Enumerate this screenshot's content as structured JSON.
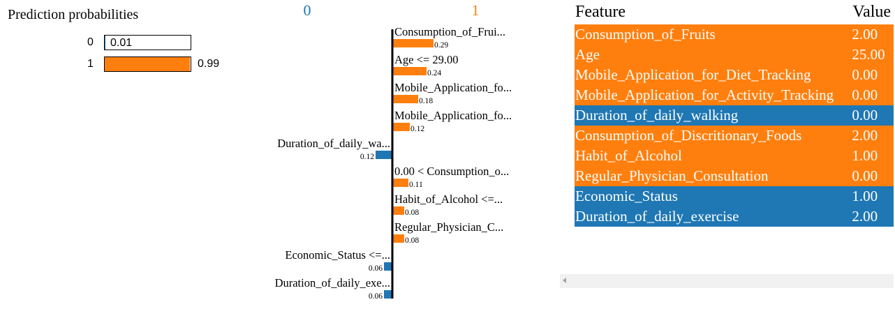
{
  "proba": {
    "title": "Prediction probabilities",
    "rows": [
      {
        "cls": "0",
        "value": 0.01,
        "label": "0.01",
        "color": "#1f77b4"
      },
      {
        "cls": "1",
        "value": 0.99,
        "label": "0.99",
        "color": "#ff7f0e"
      }
    ]
  },
  "chart_data": {
    "type": "bar",
    "orientation": "horizontal",
    "class_labels": [
      {
        "text": "0",
        "color": "#1f77b4"
      },
      {
        "text": "1",
        "color": "#ff7f0e"
      }
    ],
    "bars": [
      {
        "label": "Consumption_of_Frui...",
        "value": 0.29,
        "value_label": "0.29",
        "side": "1"
      },
      {
        "label": "Age <= 29.00",
        "value": 0.24,
        "value_label": "0.24",
        "side": "1"
      },
      {
        "label": "Mobile_Application_fo...",
        "value": 0.18,
        "value_label": "0.18",
        "side": "1"
      },
      {
        "label": "Mobile_Application_fo...",
        "value": 0.12,
        "value_label": "0.12",
        "side": "1"
      },
      {
        "label": "Duration_of_daily_wa...",
        "value": 0.12,
        "value_label": "0.12",
        "side": "0"
      },
      {
        "label": "0.00 < Consumption_o...",
        "value": 0.11,
        "value_label": "0.11",
        "side": "1"
      },
      {
        "label": "Habit_of_Alcohol <=...",
        "value": 0.08,
        "value_label": "0.08",
        "side": "1"
      },
      {
        "label": "Regular_Physician_C...",
        "value": 0.08,
        "value_label": "0.08",
        "side": "1"
      },
      {
        "label": "Economic_Status <=...",
        "value": 0.06,
        "value_label": "0.06",
        "side": "0"
      },
      {
        "label": "Duration_of_daily_exe...",
        "value": 0.06,
        "value_label": "0.06",
        "side": "0"
      }
    ]
  },
  "table": {
    "header_feature": "Feature",
    "header_value": "Value",
    "rows": [
      {
        "feature": "Consumption_of_Fruits",
        "value": "2.00",
        "side": "1"
      },
      {
        "feature": "Age",
        "value": "25.00",
        "side": "1"
      },
      {
        "feature": "Mobile_Application_for_Diet_Tracking",
        "value": "0.00",
        "side": "1"
      },
      {
        "feature": "Mobile_Application_for_Activity_Tracking",
        "value": "0.00",
        "side": "1"
      },
      {
        "feature": "Duration_of_daily_walking",
        "value": "0.00",
        "side": "0"
      },
      {
        "feature": "Consumption_of_Discritionary_Foods",
        "value": "2.00",
        "side": "1"
      },
      {
        "feature": "Habit_of_Alcohol",
        "value": "1.00",
        "side": "1"
      },
      {
        "feature": "Regular_Physician_Consultation",
        "value": "0.00",
        "side": "1"
      },
      {
        "feature": "Economic_Status",
        "value": "1.00",
        "side": "0"
      },
      {
        "feature": "Duration_of_daily_exercise",
        "value": "2.00",
        "side": "0"
      }
    ]
  },
  "colors": {
    "class_0": "#1f77b4",
    "class_1": "#ff7f0e"
  }
}
